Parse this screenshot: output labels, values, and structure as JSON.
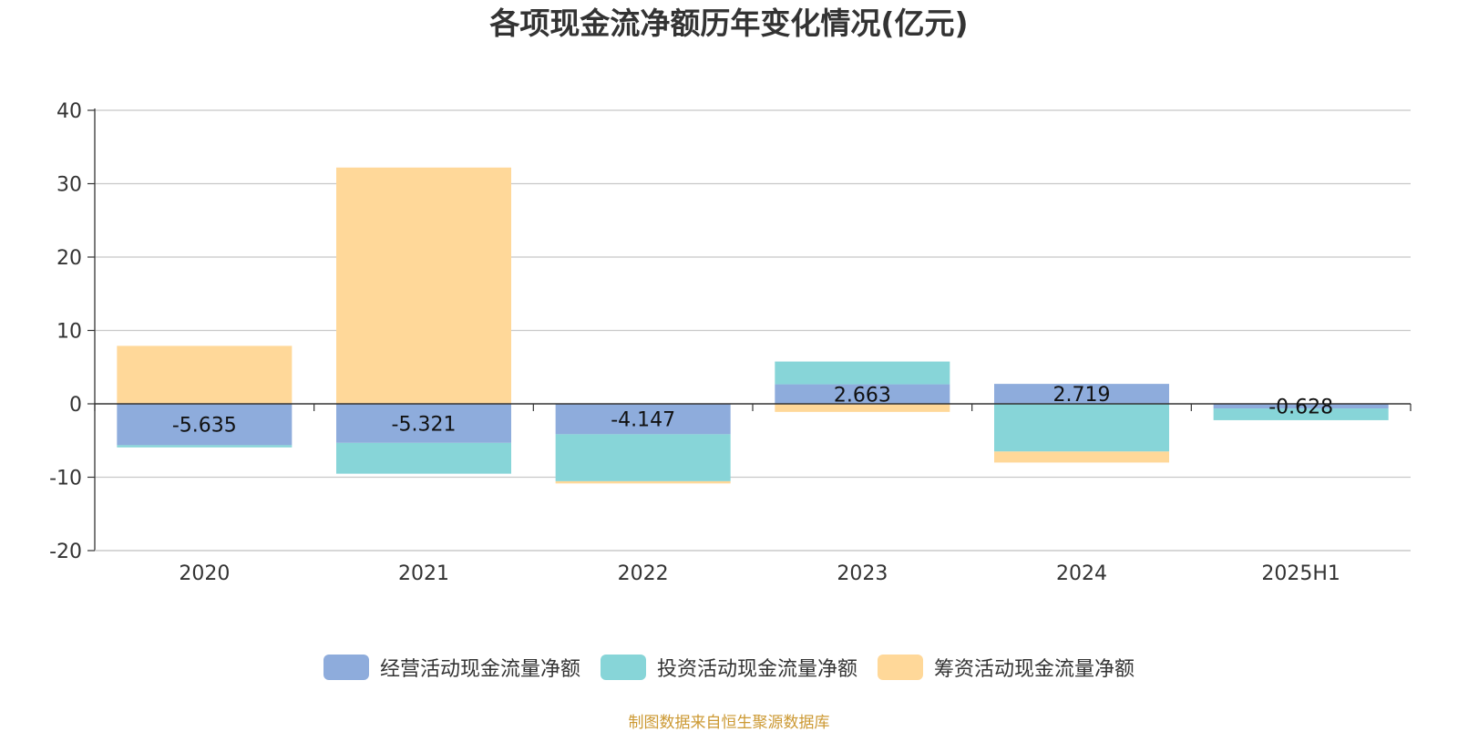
{
  "chart_data": {
    "type": "bar",
    "stacked": true,
    "title": "各项现金流净额历年变化情况(亿元)",
    "categories": [
      "2020",
      "2021",
      "2022",
      "2023",
      "2024",
      "2025H1"
    ],
    "ylim": [
      -20,
      40
    ],
    "yticks": [
      "40",
      "30",
      "20",
      "10",
      "0",
      "-10",
      "-20"
    ],
    "grid": true,
    "legend_position": "bottom",
    "series": [
      {
        "name": "经营活动现金流量净额",
        "color": "#8eacdc",
        "values": [
          -5.635,
          -5.321,
          -4.147,
          2.663,
          2.719,
          -0.628
        ],
        "labels": [
          "-5.635",
          "-5.321",
          "-4.147",
          "2.663",
          "2.719",
          "-0.628"
        ]
      },
      {
        "name": "投资活动现金流量净额",
        "color": "#87d5d8",
        "values": [
          -0.3,
          -4.2,
          -6.4,
          3.1,
          -6.5,
          -1.6
        ]
      },
      {
        "name": "筹资活动现金流量净额",
        "color": "#ffd899",
        "values": [
          7.9,
          32.2,
          -0.3,
          -1.1,
          -1.5,
          0
        ]
      }
    ],
    "source": "制图数据来自恒生聚源数据库"
  }
}
